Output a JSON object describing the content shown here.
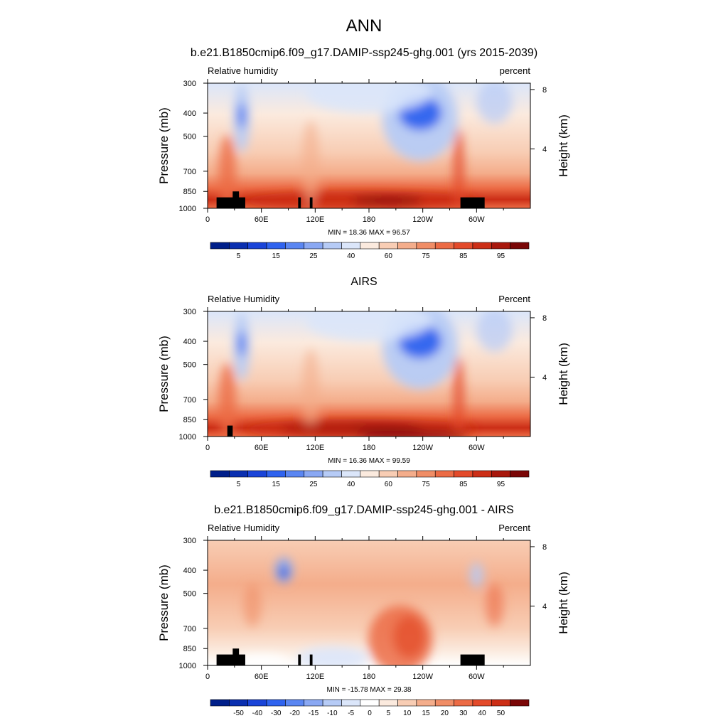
{
  "page": {
    "title": "ANN"
  },
  "colors": {
    "palette_11": [
      "#ffffff"
    ],
    "rh_levels": [
      "#001f8a",
      "#0a2fb0",
      "#1a44d8",
      "#2f63ef",
      "#5a86f2",
      "#8aa8f3",
      "#b6cbf6",
      "#dbe6fa",
      "#fbeade",
      "#f8cdb4",
      "#f4ad8b",
      "#f08d66",
      "#ec6b45",
      "#e34a2a",
      "#cc2e16",
      "#a8170c",
      "#7a0606"
    ],
    "diff_levels": [
      "#001f8a",
      "#0a2fb0",
      "#1a44d8",
      "#2f63ef",
      "#5a86f2",
      "#8aa8f3",
      "#b6cbf6",
      "#dbe6fa",
      "#ffffff",
      "#fbeade",
      "#f8cdb4",
      "#f4ad8b",
      "#f08d66",
      "#ec6b45",
      "#e34a2a",
      "#cc2e16",
      "#7a0606"
    ]
  },
  "chart_data": [
    {
      "type": "heatmap",
      "title": "b.e21.B1850cmip6.f09_g17.DAMIP-ssp245-ghg.001 (yrs 2015-2039)",
      "left_label": "Relative humidity",
      "right_label": "percent",
      "ylabel": "Pressure (mb)",
      "y2label": "Height (km)",
      "x_ticks": [
        "0",
        "60E",
        "120E",
        "180",
        "120W",
        "60W"
      ],
      "x_tick_lon": [
        0,
        60,
        120,
        180,
        240,
        300
      ],
      "xlim": [
        0,
        360
      ],
      "y_ticks": [
        300,
        400,
        500,
        700,
        850,
        1000
      ],
      "ylim": [
        1000,
        300
      ],
      "y2_ticks": [
        8,
        4
      ],
      "stats": "MIN =  18.36  MAX =  96.57",
      "colorbar_ticks": [
        "5",
        "15",
        "25",
        "40",
        "60",
        "75",
        "85",
        "95"
      ],
      "colorbar_tick_pos": [
        1,
        3,
        5,
        7,
        9,
        11,
        13,
        15
      ],
      "scale": "rh",
      "min": 18.36,
      "max": 96.57
    },
    {
      "type": "heatmap",
      "title": "AIRS",
      "left_label": "Relative Humidity",
      "right_label": "Percent",
      "ylabel": "Pressure (mb)",
      "y2label": "Height (km)",
      "x_ticks": [
        "0",
        "60E",
        "120E",
        "180",
        "120W",
        "60W"
      ],
      "x_tick_lon": [
        0,
        60,
        120,
        180,
        240,
        300
      ],
      "xlim": [
        0,
        360
      ],
      "y_ticks": [
        300,
        400,
        500,
        700,
        850,
        1000
      ],
      "ylim": [
        1000,
        300
      ],
      "y2_ticks": [
        8,
        4
      ],
      "stats": "MIN =  16.36  MAX =  99.59",
      "colorbar_ticks": [
        "5",
        "15",
        "25",
        "40",
        "60",
        "75",
        "85",
        "95"
      ],
      "colorbar_tick_pos": [
        1,
        3,
        5,
        7,
        9,
        11,
        13,
        15
      ],
      "scale": "rh",
      "min": 16.36,
      "max": 99.59
    },
    {
      "type": "heatmap",
      "title": "b.e21.B1850cmip6.f09_g17.DAMIP-ssp245-ghg.001 - AIRS",
      "left_label": "Relative Humidity",
      "right_label": "Percent",
      "ylabel": "Pressure (mb)",
      "y2label": "Height (km)",
      "x_ticks": [
        "0",
        "60E",
        "120E",
        "180",
        "120W",
        "60W"
      ],
      "x_tick_lon": [
        0,
        60,
        120,
        180,
        240,
        300
      ],
      "xlim": [
        0,
        360
      ],
      "y_ticks": [
        300,
        400,
        500,
        700,
        850,
        1000
      ],
      "ylim": [
        1000,
        300
      ],
      "y2_ticks": [
        8,
        4
      ],
      "stats": "MIN = -15.78  MAX =  29.38",
      "colorbar_ticks": [
        "-50",
        "-40",
        "-30",
        "-20",
        "-15",
        "-10",
        "-5",
        "0",
        "5",
        "10",
        "15",
        "20",
        "30",
        "40",
        "50"
      ],
      "colorbar_tick_pos": [
        1,
        2,
        3,
        4,
        5,
        6,
        7,
        8,
        9,
        10,
        11,
        12,
        13,
        14,
        15
      ],
      "scale": "diff",
      "min": -15.78,
      "max": 29.38
    }
  ]
}
